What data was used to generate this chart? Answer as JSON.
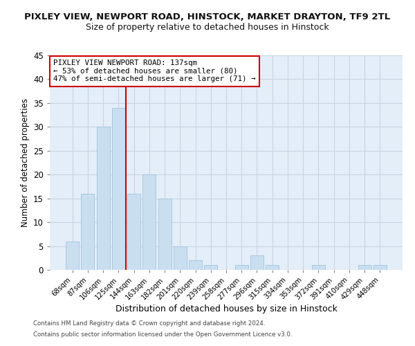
{
  "title1": "PIXLEY VIEW, NEWPORT ROAD, HINSTOCK, MARKET DRAYTON, TF9 2TL",
  "title2": "Size of property relative to detached houses in Hinstock",
  "xlabel": "Distribution of detached houses by size in Hinstock",
  "ylabel": "Number of detached properties",
  "bar_labels": [
    "68sqm",
    "87sqm",
    "106sqm",
    "125sqm",
    "144sqm",
    "163sqm",
    "182sqm",
    "201sqm",
    "220sqm",
    "239sqm",
    "258sqm",
    "277sqm",
    "296sqm",
    "315sqm",
    "334sqm",
    "353sqm",
    "372sqm",
    "391sqm",
    "410sqm",
    "429sqm",
    "448sqm"
  ],
  "bar_values": [
    6,
    16,
    30,
    34,
    16,
    20,
    15,
    5,
    2,
    1,
    0,
    1,
    3,
    1,
    0,
    0,
    1,
    0,
    0,
    1,
    1
  ],
  "bar_color": "#c9dff0",
  "bar_edge_color": "#a8c8e0",
  "vline_color": "#cc0000",
  "vline_x_index": 3,
  "ylim": [
    0,
    45
  ],
  "yticks": [
    0,
    5,
    10,
    15,
    20,
    25,
    30,
    35,
    40,
    45
  ],
  "annotation_line1": "PIXLEY VIEW NEWPORT ROAD: 137sqm",
  "annotation_line2": "← 53% of detached houses are smaller (80)",
  "annotation_line3": "47% of semi-detached houses are larger (71) →",
  "annotation_box_color": "#cc0000",
  "footer1": "Contains HM Land Registry data © Crown copyright and database right 2024.",
  "footer2": "Contains public sector information licensed under the Open Government Licence v3.0.",
  "bg_color": "#ffffff",
  "ax_bg_color": "#e4eef8",
  "grid_color": "#c8d4e4",
  "title1_fontsize": 9.5,
  "title2_fontsize": 9,
  "ylabel_fontsize": 8.5,
  "xlabel_fontsize": 9
}
